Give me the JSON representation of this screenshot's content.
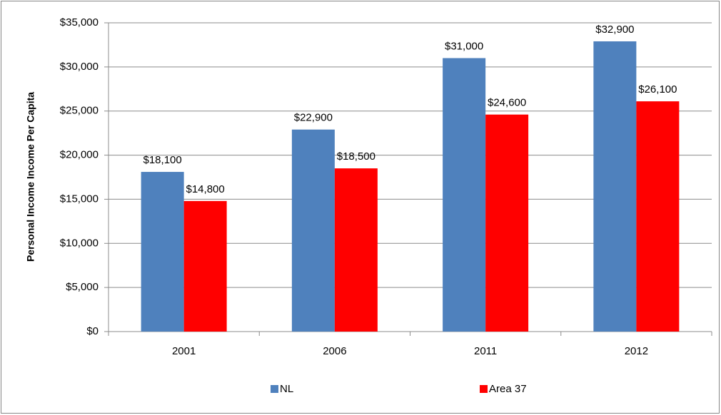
{
  "chart_data": {
    "type": "bar",
    "y_label": "Personal Income Income Per Capita",
    "categories": [
      "2001",
      "2006",
      "2011",
      "2012"
    ],
    "series": [
      {
        "name": "NL",
        "color": "#4f81bd",
        "label_color": "#2e7bbf",
        "values": [
          18100,
          22900,
          31000,
          32900
        ],
        "value_labels": [
          "$18,100",
          "$22,900",
          "$31,000",
          "$32,900"
        ]
      },
      {
        "name": "Area 37",
        "color": "#ff0000",
        "label_color": "#ff0000",
        "values": [
          14800,
          18500,
          24600,
          26100
        ],
        "value_labels": [
          "$14,800",
          "$18,500",
          "$24,600",
          "$26,100"
        ]
      }
    ],
    "ylim": [
      0,
      35000
    ],
    "yticks": [
      {
        "value": 0,
        "label": "$0"
      },
      {
        "value": 5000,
        "label": "$5,000"
      },
      {
        "value": 10000,
        "label": "$10,000"
      },
      {
        "value": 15000,
        "label": "$15,000"
      },
      {
        "value": 20000,
        "label": "$20,000"
      },
      {
        "value": 25000,
        "label": "$25,000"
      },
      {
        "value": 30000,
        "label": "$30,000"
      },
      {
        "value": 35000,
        "label": "$35,000"
      }
    ],
    "grid": true,
    "legend": "bottom"
  }
}
